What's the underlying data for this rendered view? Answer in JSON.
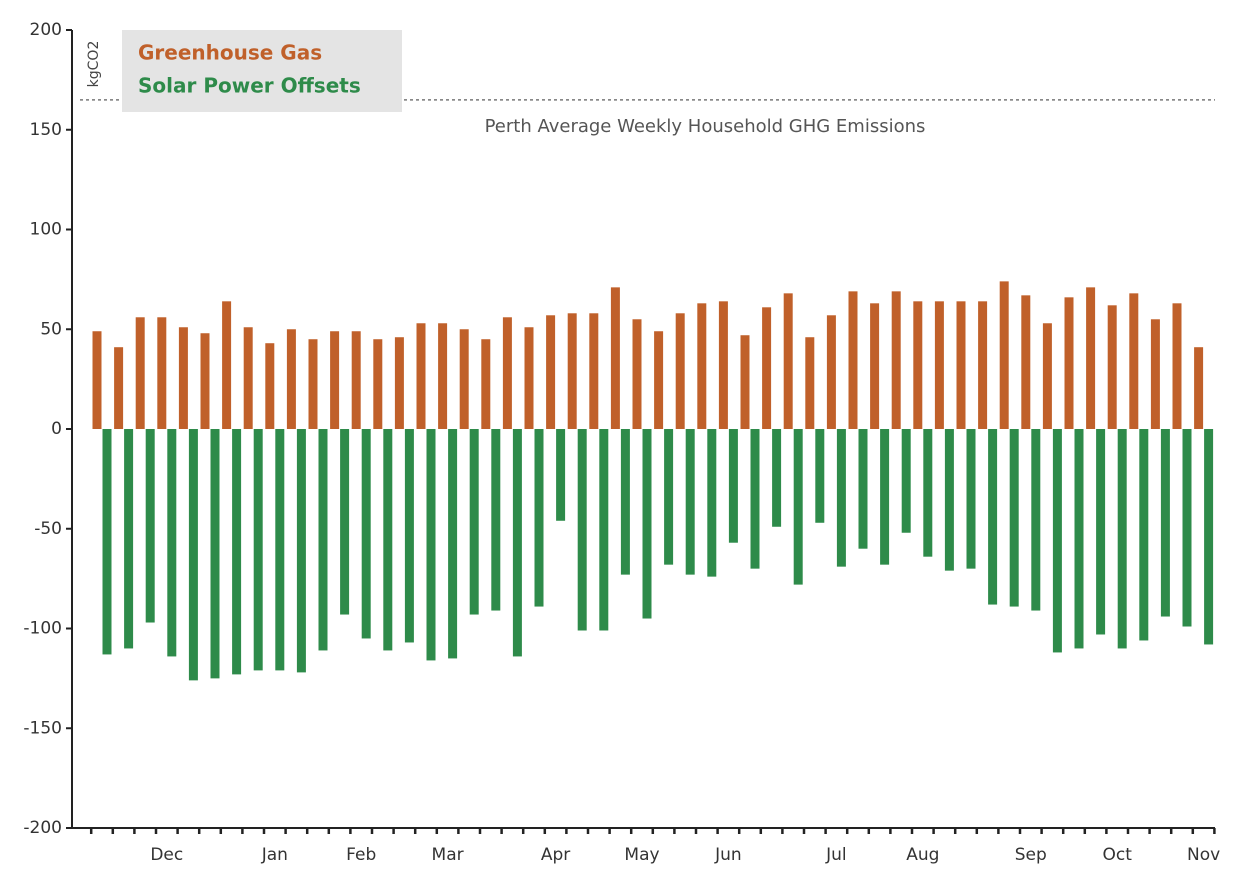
{
  "chart_data": {
    "type": "bar",
    "y_label": "kgCO2",
    "categories": [
      null,
      null,
      null,
      "Dec",
      null,
      null,
      null,
      null,
      "Jan",
      null,
      null,
      null,
      "Feb",
      null,
      null,
      null,
      "Mar",
      null,
      null,
      null,
      null,
      "Apr",
      null,
      null,
      null,
      "May",
      null,
      null,
      null,
      "Jun",
      null,
      null,
      null,
      null,
      "Jul",
      null,
      null,
      null,
      "Aug",
      null,
      null,
      null,
      null,
      "Sep",
      null,
      null,
      null,
      "Oct",
      null,
      null,
      null,
      "Nov"
    ],
    "series": [
      {
        "name": "Greenhouse Gas",
        "color": "#c0602a",
        "values": [
          49,
          41,
          56,
          56,
          51,
          48,
          64,
          51,
          43,
          50,
          45,
          49,
          49,
          45,
          46,
          53,
          53,
          50,
          45,
          56,
          51,
          57,
          58,
          58,
          71,
          55,
          49,
          58,
          63,
          64,
          47,
          61,
          68,
          46,
          57,
          69,
          63,
          69,
          64,
          64,
          64,
          64,
          74,
          67,
          53,
          66,
          71,
          62,
          68,
          55,
          63,
          41
        ]
      },
      {
        "name": "Solar Power Offsets",
        "color": "#2e8b4a",
        "values": [
          -113,
          -110,
          -97,
          -114,
          -126,
          -125,
          -123,
          -121,
          -121,
          -122,
          -111,
          -93,
          -105,
          -111,
          -107,
          -116,
          -115,
          -93,
          -91,
          -114,
          -89,
          -46,
          -101,
          -101,
          -73,
          -95,
          -68,
          -73,
          -74,
          -57,
          -70,
          -49,
          -78,
          -47,
          -69,
          -60,
          -68,
          -52,
          -64,
          -71,
          -70,
          -88,
          -89,
          -91,
          -112,
          -110,
          -103,
          -110,
          -106,
          -94,
          -99,
          -108
        ]
      }
    ],
    "reference_line": {
      "value": 165,
      "label": "Perth Average Weekly Household GHG Emissions"
    },
    "ylim": [
      -200,
      200
    ],
    "yticks": [
      -200,
      -150,
      -100,
      -50,
      0,
      50,
      100,
      150,
      200
    ],
    "legend": "top-left"
  }
}
